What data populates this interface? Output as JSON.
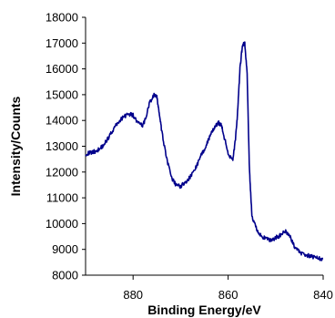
{
  "chart_data": {
    "type": "line",
    "title": "",
    "xlabel": "Binding Energy/eV",
    "ylabel": "Intensity/Counts",
    "xlim": [
      890,
      840
    ],
    "ylim": [
      8000,
      18000
    ],
    "x_reversed": true,
    "x_ticks": [
      880,
      860,
      840
    ],
    "y_ticks": [
      8000,
      9000,
      10000,
      11000,
      12000,
      13000,
      14000,
      15000,
      16000,
      17000,
      18000
    ],
    "grid": false,
    "legend": "none",
    "line_color": "#00008B",
    "series": [
      {
        "x": [
          890,
          889,
          888,
          887,
          886,
          885,
          884,
          883,
          882,
          881,
          880,
          879,
          878,
          877.5,
          876.5,
          875.5,
          875,
          874.5,
          874,
          873,
          872,
          871,
          870,
          869,
          868,
          867,
          866,
          865,
          864,
          863,
          862,
          861.5,
          861,
          860,
          859,
          858.5,
          858,
          857.5,
          857,
          856.5,
          856,
          855.5,
          855,
          854,
          853,
          852,
          851,
          850,
          849,
          848,
          847,
          846,
          845,
          844,
          843,
          842,
          841,
          840
        ],
        "y": [
          12700,
          12750,
          12800,
          12900,
          13100,
          13400,
          13700,
          13950,
          14150,
          14250,
          14200,
          13900,
          13800,
          14000,
          14700,
          15000,
          14900,
          14300,
          13600,
          12600,
          11800,
          11500,
          11450,
          11600,
          11800,
          12100,
          12500,
          12900,
          13300,
          13700,
          13900,
          13850,
          13500,
          12700,
          12500,
          13200,
          14300,
          16000,
          16900,
          17000,
          15800,
          12000,
          10300,
          9800,
          9500,
          9400,
          9350,
          9450,
          9550,
          9700,
          9500,
          9100,
          8900,
          8800,
          8750,
          8700,
          8650,
          8650
        ]
      }
    ]
  }
}
